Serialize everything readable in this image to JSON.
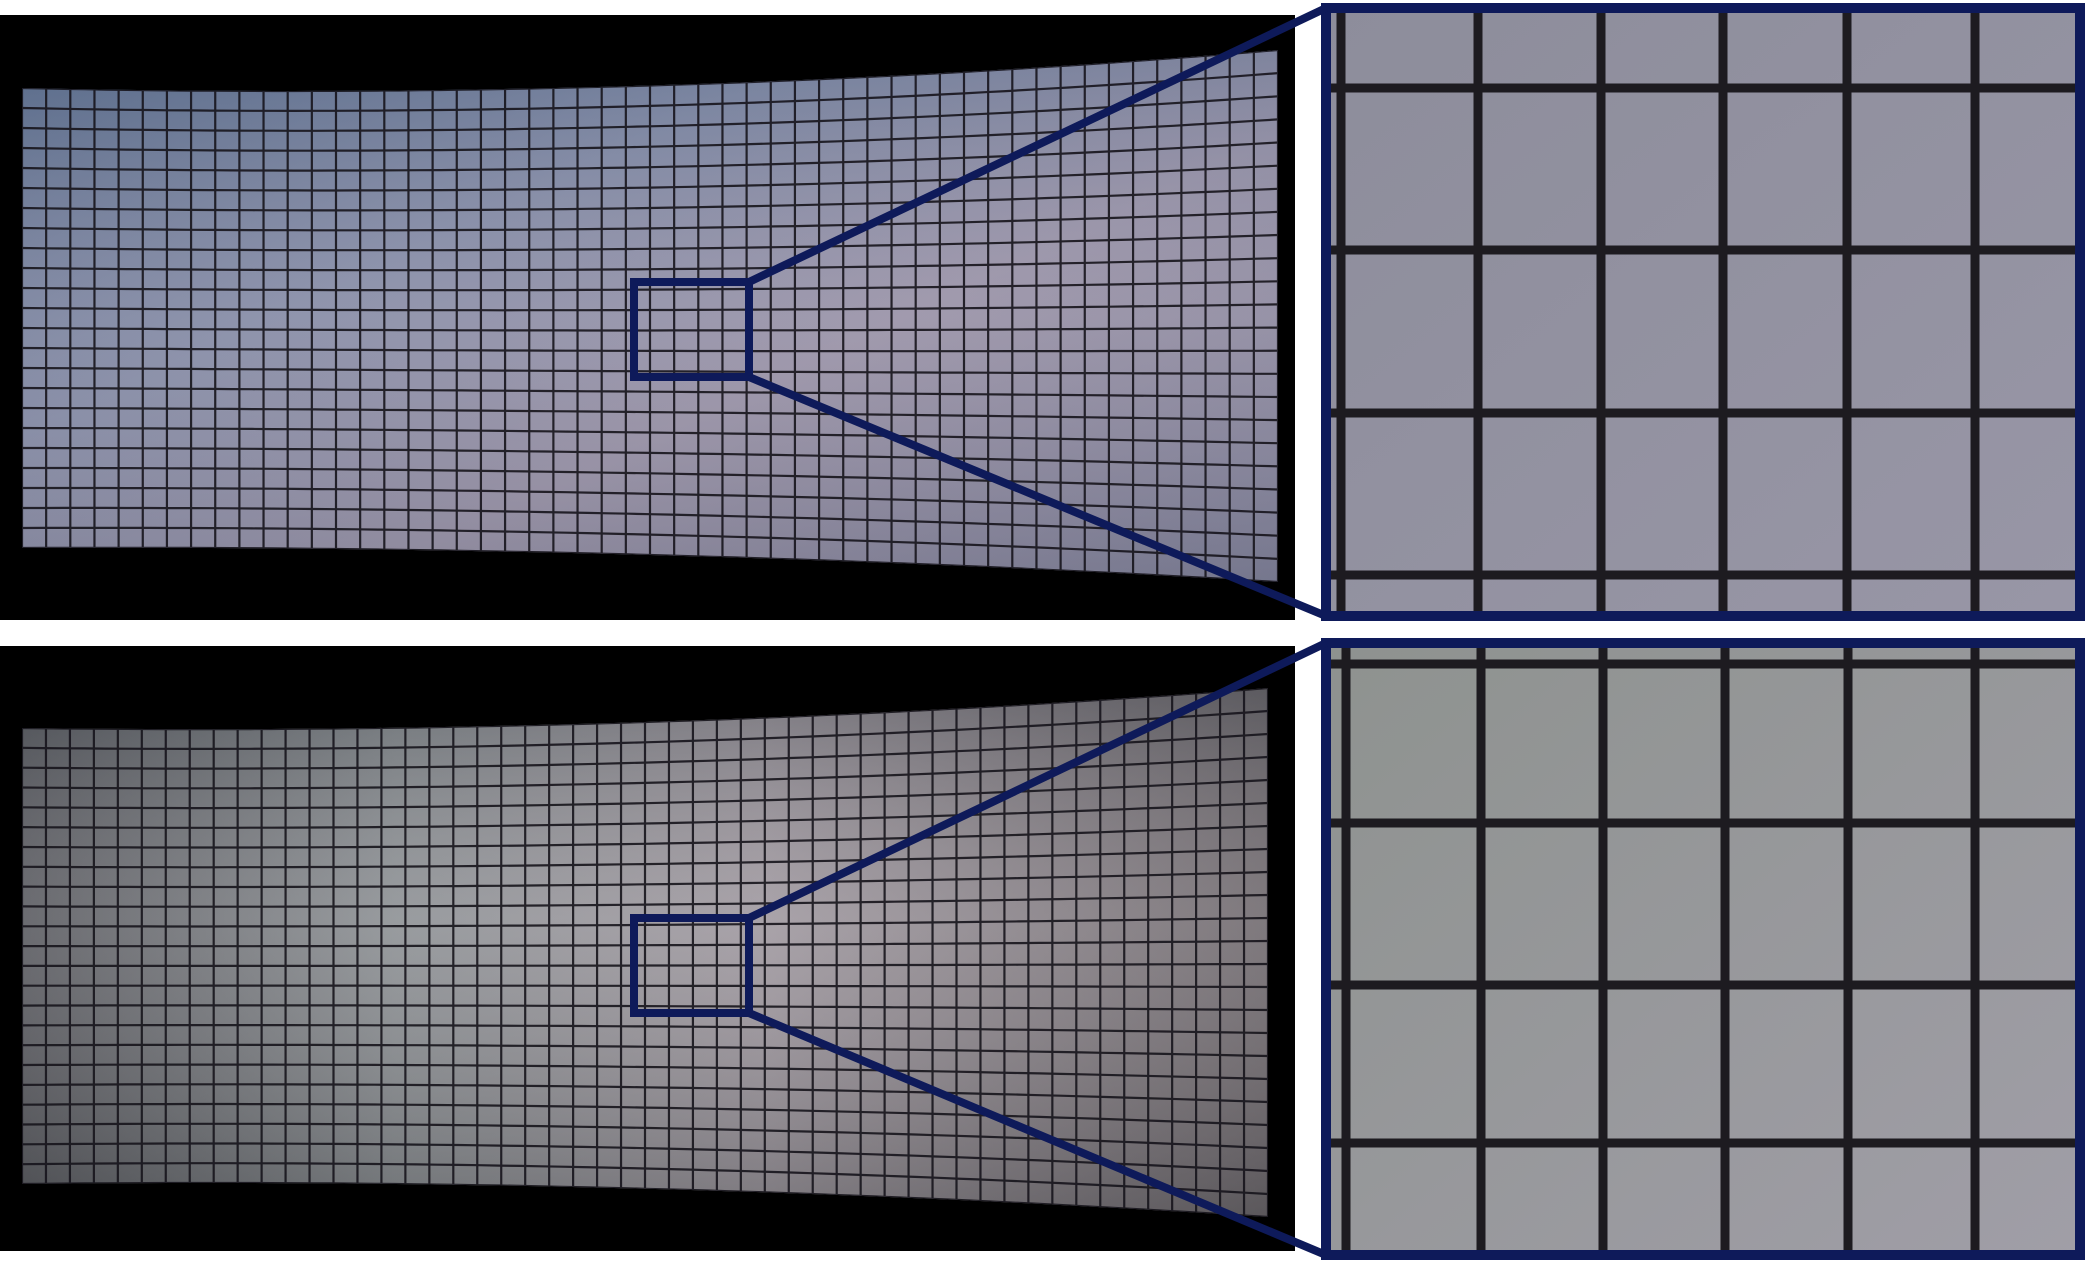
{
  "figure": {
    "panels": [
      {
        "name": "top-panel",
        "tint": [
          "#5d6f8c",
          "#8a93ab",
          "#9c95a9",
          "#8c8ca4"
        ]
      },
      {
        "name": "bottom-panel",
        "tint": [
          "#5c6266",
          "#8d9498",
          "#a79fa6",
          "#6f6a6c"
        ]
      }
    ],
    "colors": {
      "frame": "#0e1a5a",
      "grid_line": "#17151c",
      "background": "#000000",
      "zoom_fill": "#8f8f9e"
    }
  }
}
